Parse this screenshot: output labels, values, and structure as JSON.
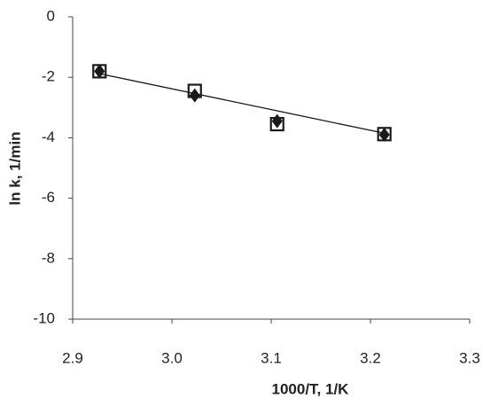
{
  "chart_data": {
    "type": "scatter",
    "x_label": "1000/T, 1/K",
    "y_label": "ln k, 1/min",
    "xlim": [
      2.9,
      3.3
    ],
    "xticks": [
      2.9,
      {
        "value": 3,
        "label": "3.0"
      },
      3.1,
      3.2,
      3.3
    ],
    "ylim": [
      -10,
      0
    ],
    "yticks": [
      0,
      -2,
      -4,
      -6,
      -8,
      -10
    ],
    "series": [
      {
        "color": "#1a1a1a",
        "marker": "diamond",
        "x": [
          2.927,
          3.023,
          3.106,
          3.214
        ],
        "values": [
          -1.8,
          -2.6,
          -3.45,
          -3.9
        ]
      },
      {
        "color": "#1a1a1a",
        "marker": "square-open",
        "x": [
          2.927,
          3.023,
          3.106,
          3.214
        ],
        "values": [
          -1.8,
          -2.45,
          -3.55,
          -3.88
        ]
      }
    ],
    "trendline": {
      "color": "#1a1a1a",
      "x": [
        2.927,
        3.214
      ],
      "values": [
        -1.88,
        -3.85
      ]
    }
  }
}
